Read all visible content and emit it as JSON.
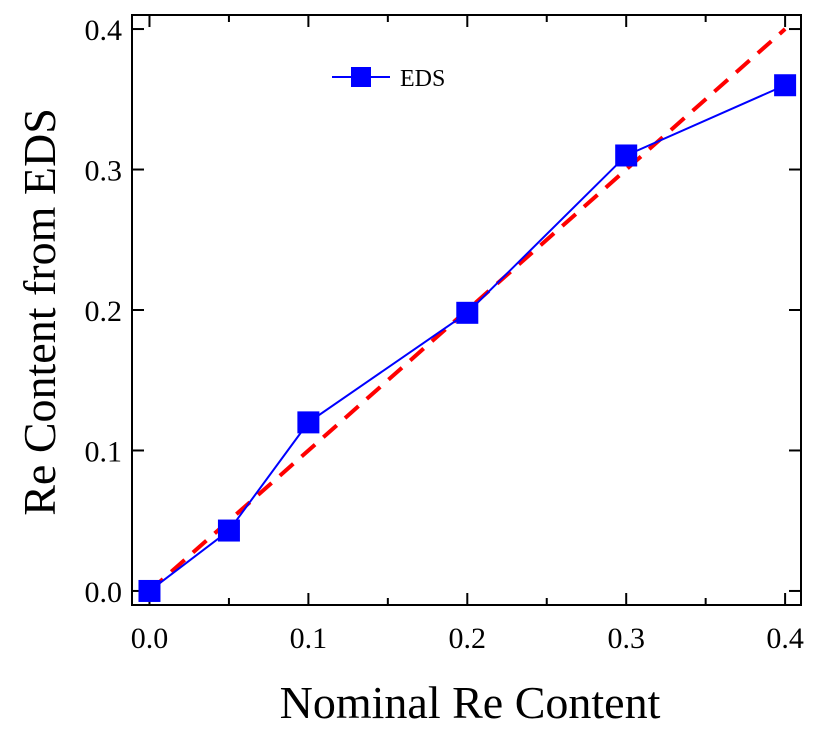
{
  "chart_data": {
    "type": "line",
    "xlabel": "Nominal Re Content",
    "ylabel": "Re Content from EDS",
    "xlim": [
      -0.011,
      0.41
    ],
    "ylim": [
      -0.01,
      0.41
    ],
    "x_ticks": [
      "0.0",
      "0.1",
      "0.2",
      "0.3",
      "0.4"
    ],
    "x_minor_ticks": [
      0.05,
      0.15,
      0.25,
      0.35
    ],
    "y_ticks": [
      "0.0",
      "0.1",
      "0.2",
      "0.3",
      "0.4"
    ],
    "legend_position": "top-center",
    "grid": false,
    "series": [
      {
        "name": "EDS",
        "marker": "square",
        "color": "#0000ff",
        "points": [
          {
            "x": 0.0,
            "y": 0.0
          },
          {
            "x": 0.05,
            "y": 0.043
          },
          {
            "x": 0.1,
            "y": 0.12
          },
          {
            "x": 0.2,
            "y": 0.198
          },
          {
            "x": 0.3,
            "y": 0.31
          },
          {
            "x": 0.4,
            "y": 0.36
          }
        ]
      }
    ],
    "reference_line": {
      "style": "dashed",
      "color": "#ff0000",
      "points": [
        {
          "x": 0.0,
          "y": 0.0
        },
        {
          "x": 0.4,
          "y": 0.4
        }
      ]
    }
  }
}
